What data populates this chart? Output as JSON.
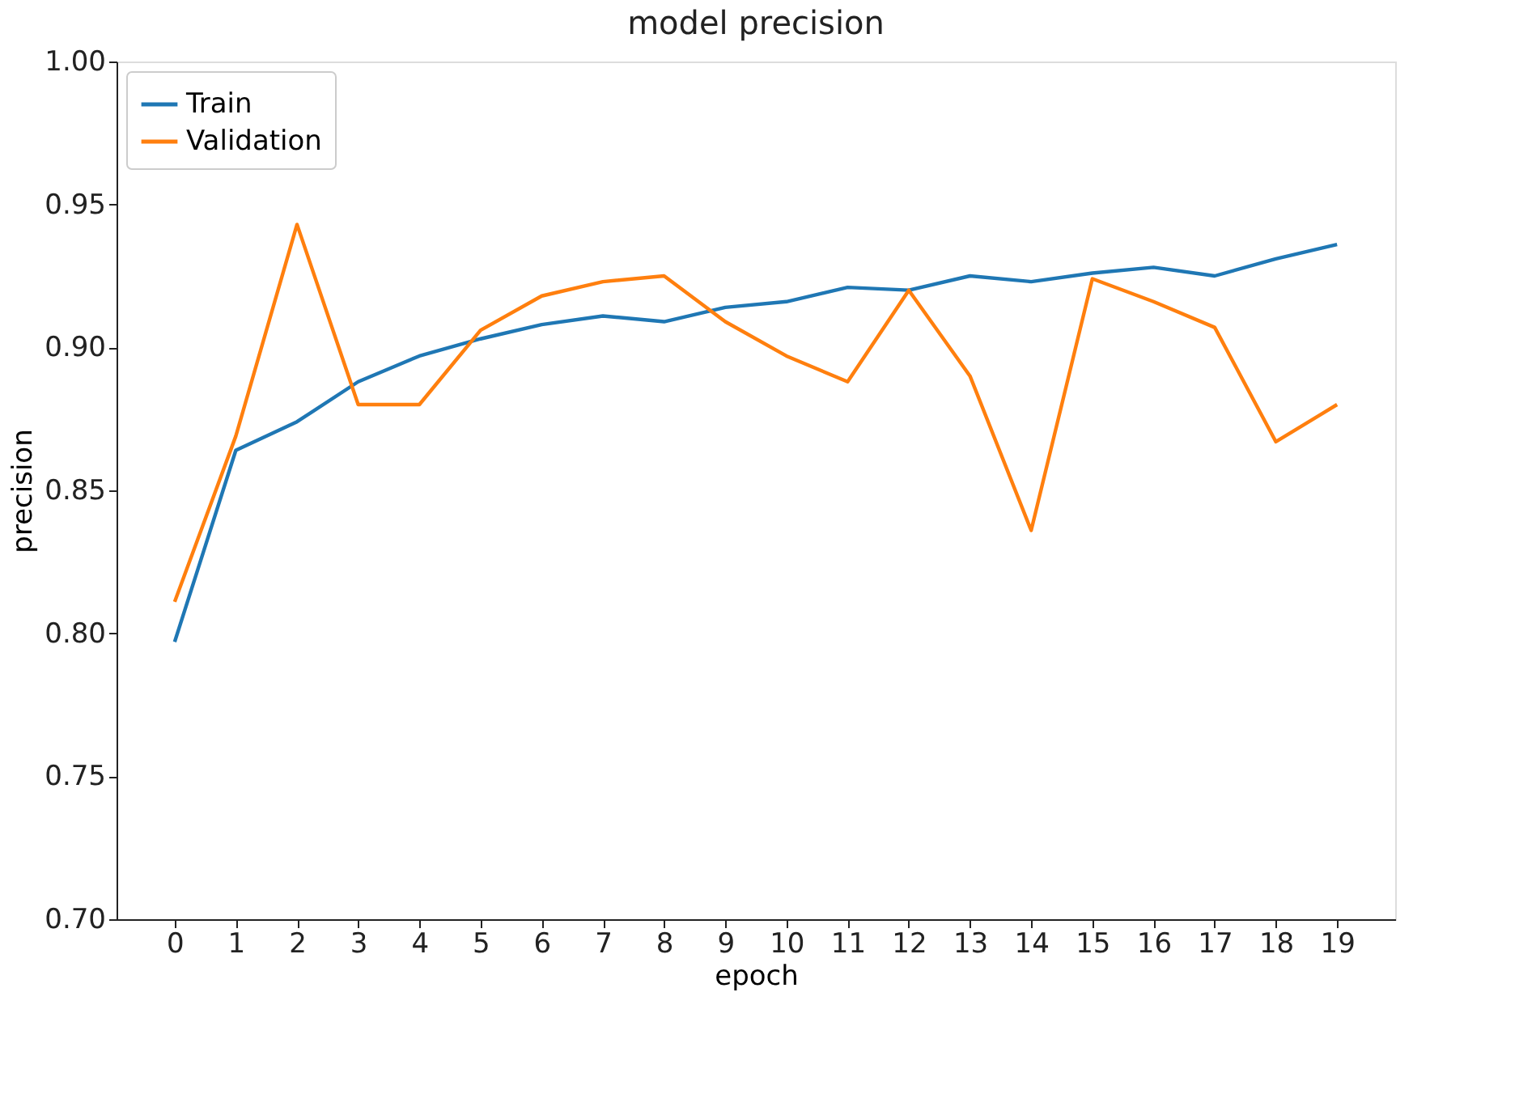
{
  "chart_data": {
    "type": "line",
    "title": "model precision",
    "xlabel": "epoch",
    "ylabel": "precision",
    "x": [
      0,
      1,
      2,
      3,
      4,
      5,
      6,
      7,
      8,
      9,
      10,
      11,
      12,
      13,
      14,
      15,
      16,
      17,
      18,
      19
    ],
    "series": [
      {
        "name": "Train",
        "color": "#1f77b4",
        "values": [
          0.797,
          0.864,
          0.874,
          0.888,
          0.897,
          0.903,
          0.908,
          0.911,
          0.909,
          0.914,
          0.916,
          0.921,
          0.92,
          0.925,
          0.923,
          0.926,
          0.928,
          0.925,
          0.931,
          0.936
        ]
      },
      {
        "name": "Validation",
        "color": "#ff7f0e",
        "values": [
          0.811,
          0.869,
          0.943,
          0.88,
          0.88,
          0.906,
          0.918,
          0.923,
          0.925,
          0.909,
          0.897,
          0.888,
          0.92,
          0.89,
          0.836,
          0.924,
          0.916,
          0.907,
          0.867,
          0.88
        ]
      }
    ],
    "xlim": [
      -0.95,
      19.95
    ],
    "xticks": [
      0,
      1,
      2,
      3,
      4,
      5,
      6,
      7,
      8,
      9,
      10,
      11,
      12,
      13,
      14,
      15,
      16,
      17,
      18,
      19
    ],
    "ylim": [
      0.7,
      1.0
    ],
    "yticks": [
      {
        "value": 0.7,
        "label": "0.70"
      },
      0.75,
      {
        "value": 0.8,
        "label": "0.80"
      },
      0.85,
      {
        "value": 0.9,
        "label": "0.90"
      },
      0.95,
      {
        "value": 1.0,
        "label": "1.00"
      }
    ],
    "grid": false,
    "legend": "top left",
    "marker": "none",
    "line_style": "solid"
  }
}
